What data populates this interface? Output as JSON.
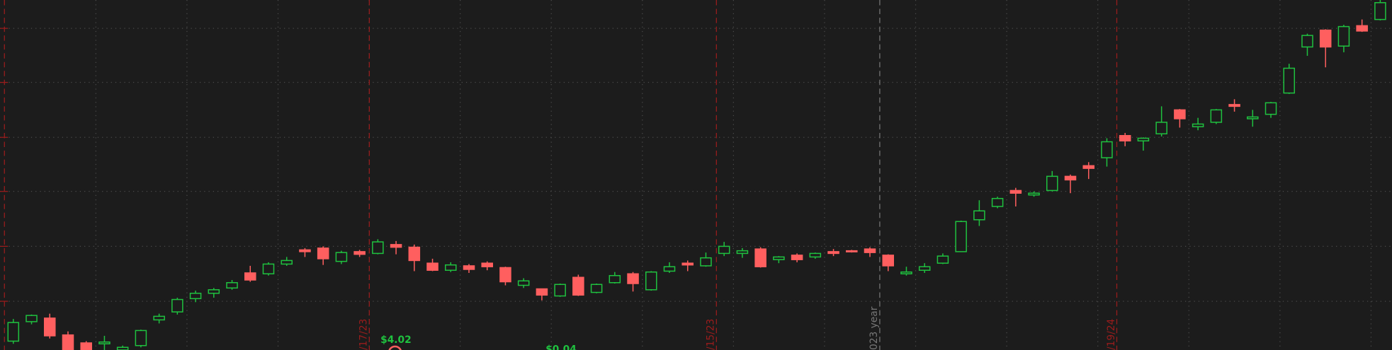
{
  "chart_data": {
    "type": "candlestick",
    "up_color": "#1fc13f",
    "down_color": "#ff5f5f",
    "ylim": [
      0,
      395
    ],
    "yticks": [
      55,
      117,
      179,
      240,
      302,
      363
    ],
    "grid": true,
    "open": [
      10,
      32,
      36,
      17,
      8,
      7,
      0,
      5,
      34,
      43,
      58,
      64,
      70,
      87,
      86,
      97,
      113,
      115,
      100,
      111,
      109,
      119,
      116,
      98,
      90,
      95,
      98,
      93,
      73,
      69,
      61,
      82,
      65,
      76,
      86,
      68,
      89,
      98,
      95,
      109,
      109,
      114,
      102,
      107,
      105,
      111,
      112,
      114,
      107,
      86,
      90,
      98,
      111,
      147,
      162,
      180,
      175,
      180,
      196,
      208,
      217,
      242,
      236,
      244,
      271,
      252,
      257,
      277,
      261,
      266,
      290,
      342,
      361,
      343,
      366,
      373
    ],
    "high": [
      35,
      40,
      41,
      21,
      10,
      16,
      5,
      23,
      41,
      59,
      67,
      70,
      79,
      95,
      99,
      105,
      115,
      117,
      112,
      113,
      125,
      123,
      119,
      103,
      99,
      97,
      100,
      94,
      81,
      69,
      75,
      85,
      75,
      88,
      88,
      89,
      99,
      101,
      110,
      122,
      115,
      116,
      106,
      109,
      110,
      114,
      113,
      116,
      108,
      94,
      98,
      109,
      146,
      169,
      173,
      183,
      179,
      202,
      198,
      212,
      239,
      245,
      240,
      275,
      272,
      262,
      272,
      283,
      271,
      280,
      323,
      357,
      362,
      367,
      373,
      395
    ],
    "low": [
      7,
      29,
      13,
      0,
      0,
      0,
      0,
      3,
      30,
      40,
      54,
      59,
      68,
      77,
      84,
      95,
      105,
      96,
      97,
      105,
      108,
      108,
      89,
      89,
      88,
      87,
      90,
      73,
      70,
      56,
      60,
      61,
      64,
      75,
      66,
      67,
      87,
      89,
      94,
      106,
      104,
      93,
      98,
      99,
      103,
      106,
      110,
      105,
      89,
      84,
      87,
      97,
      111,
      140,
      160,
      162,
      173,
      179,
      177,
      193,
      207,
      230,
      225,
      241,
      251,
      248,
      255,
      269,
      252,
      262,
      289,
      332,
      319,
      336,
      359,
      372
    ],
    "close": [
      31,
      39,
      16,
      0,
      0,
      9,
      3,
      22,
      38,
      57,
      64,
      68,
      76,
      79,
      97,
      101,
      111,
      103,
      110,
      108,
      122,
      116,
      101,
      90,
      96,
      91,
      94,
      77,
      78,
      62,
      74,
      62,
      74,
      84,
      75,
      88,
      94,
      96,
      104,
      117,
      112,
      94,
      105,
      102,
      109,
      109,
      111,
      110,
      95,
      88,
      94,
      106,
      145,
      157,
      171,
      177,
      177,
      196,
      192,
      205,
      235,
      236,
      239,
      257,
      261,
      255,
      271,
      275,
      263,
      279,
      318,
      355,
      342,
      365,
      360,
      392
    ],
    "date_markers": [
      "/17/23",
      "/15/23",
      "023 year",
      "/19/24"
    ],
    "annotations": [
      "$4.02",
      "$0.04"
    ]
  }
}
